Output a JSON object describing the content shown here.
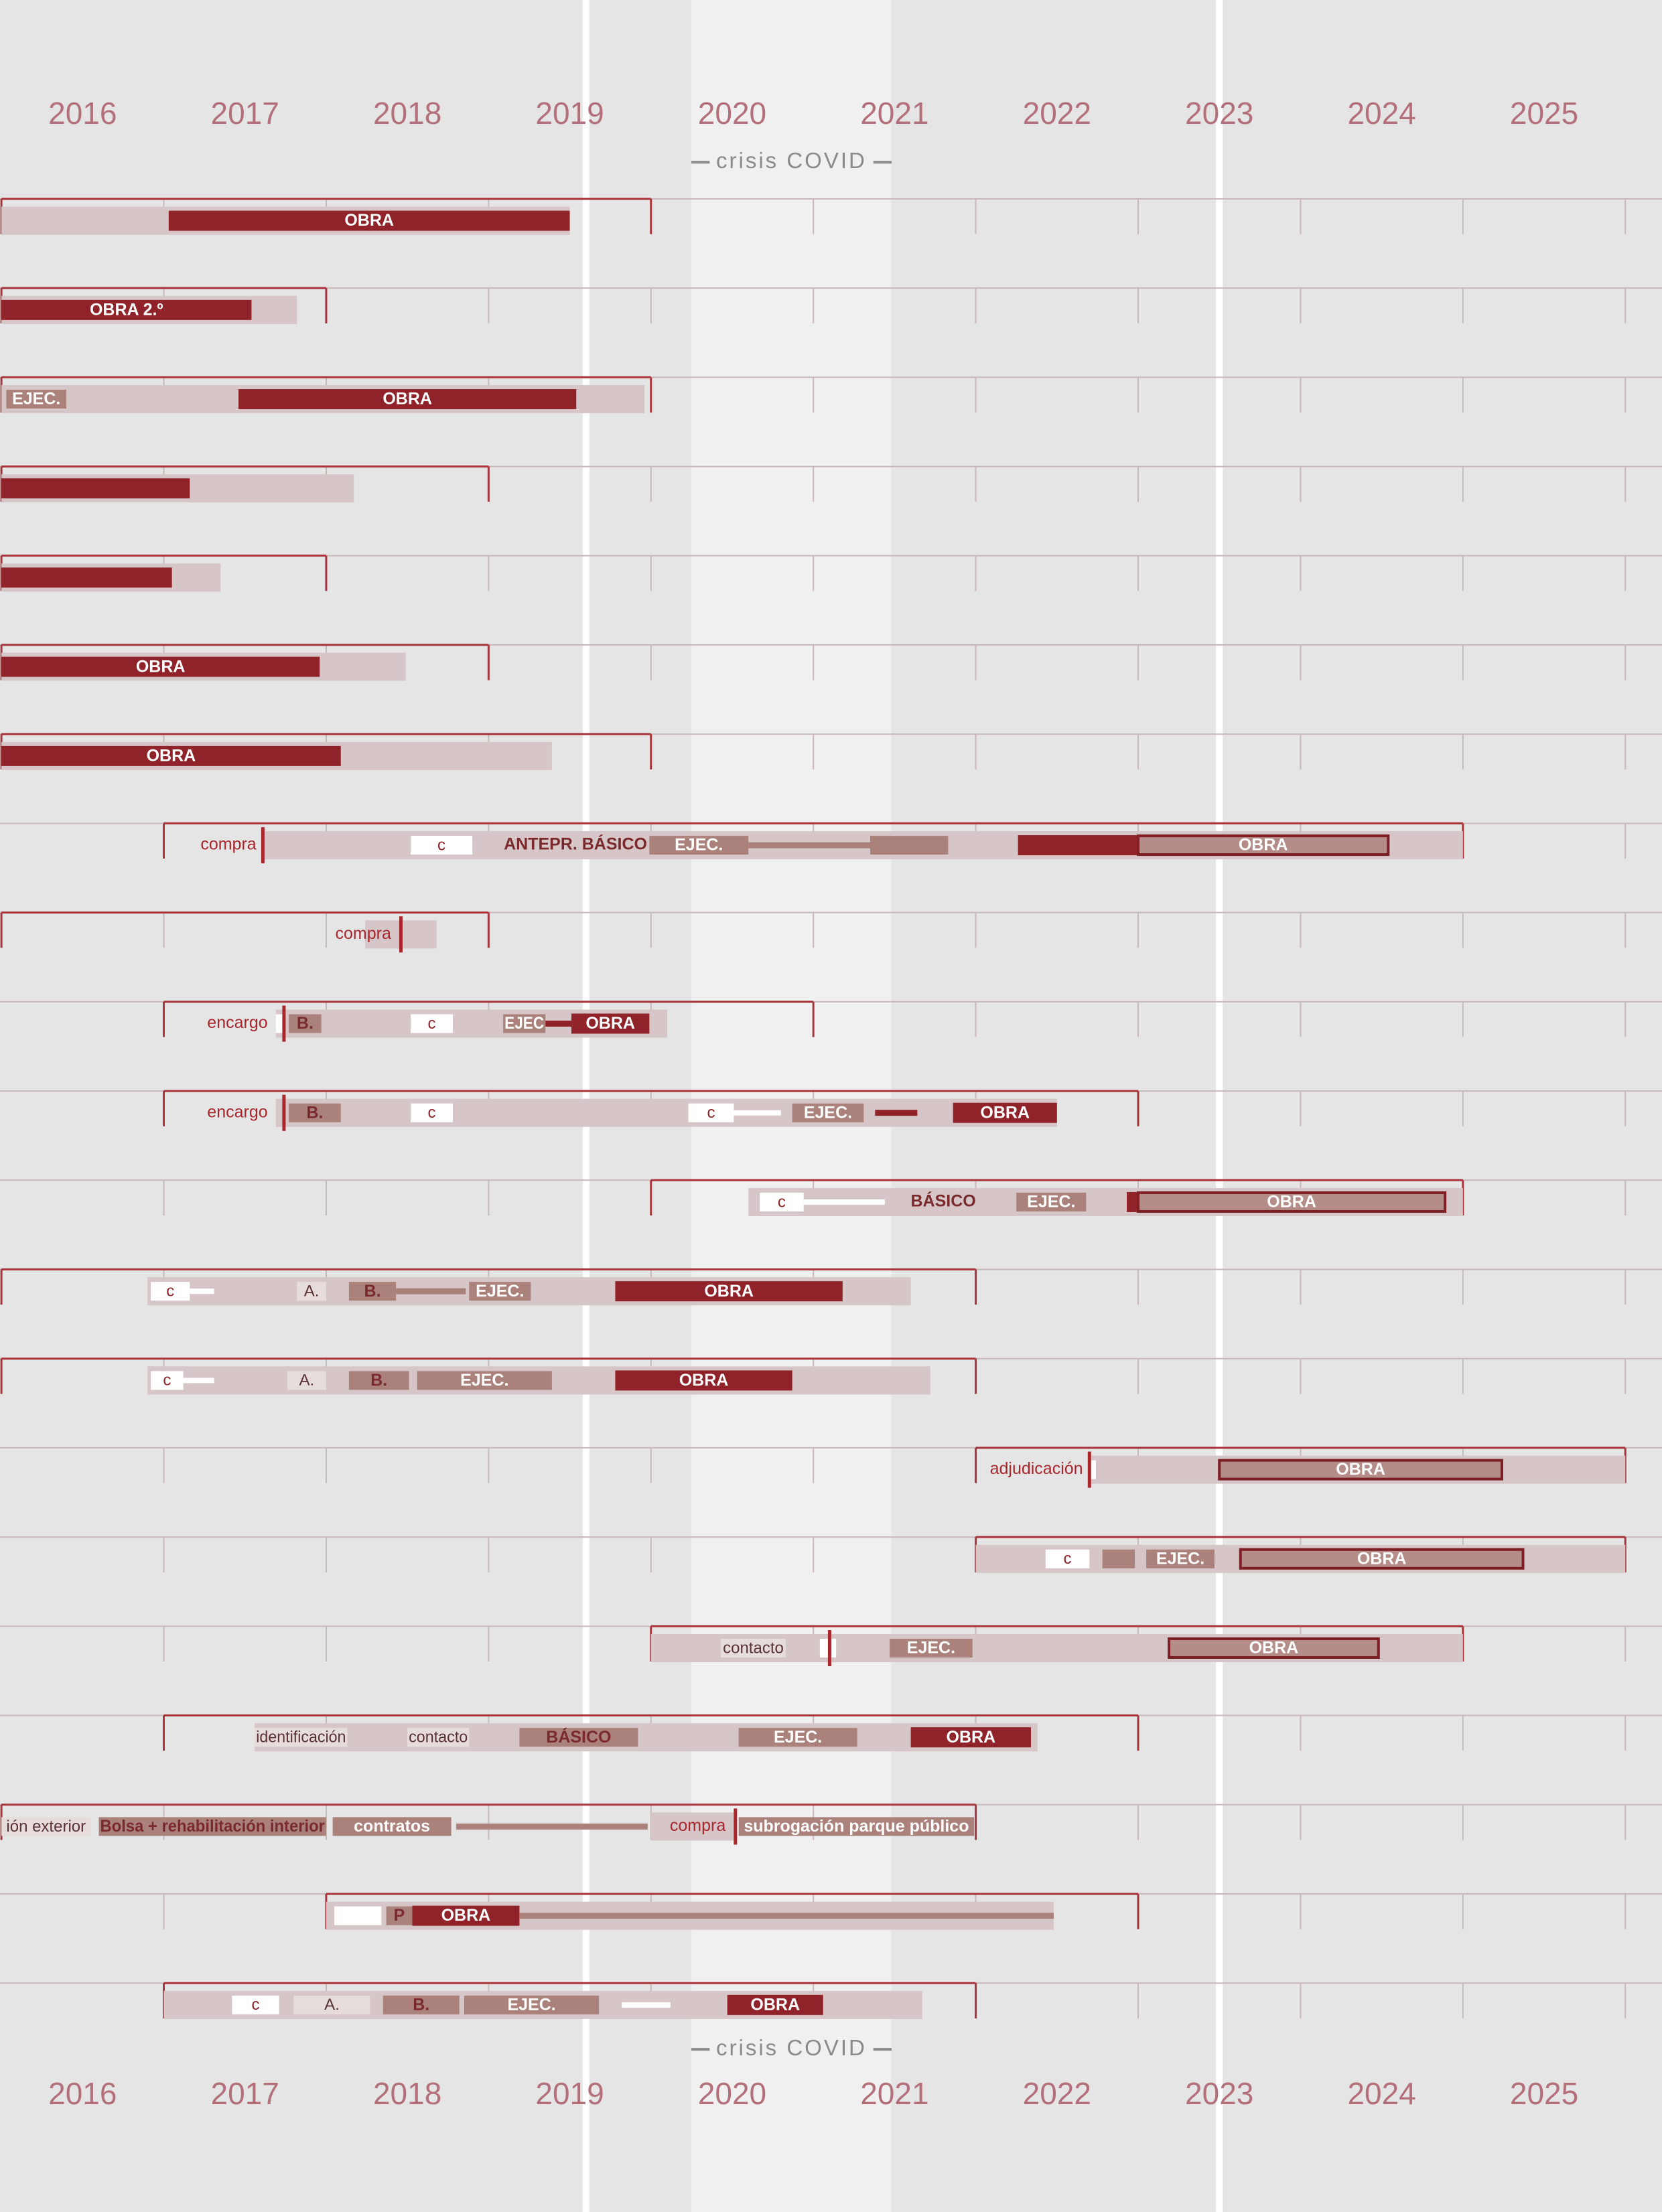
{
  "chart_data": {
    "type": "gantt",
    "xlim": [
      2016,
      2026
    ],
    "years": [
      "2016",
      "2017",
      "2018",
      "2019",
      "2020",
      "2021",
      "2022",
      "2023",
      "2024",
      "2025"
    ],
    "covid_label": "crisis COVID",
    "covid_band": [
      2020.25,
      2021.48
    ],
    "markers": [
      2019.6,
      2023.5
    ],
    "rows": [
      {
        "range": [
          2016,
          2020
        ],
        "bars": [
          {
            "kind": "bg",
            "start": 2016,
            "end": 2019.5
          },
          {
            "kind": "dark",
            "start": 2017.03,
            "end": 2019.5,
            "label": "OBRA"
          }
        ]
      },
      {
        "range": [
          2016,
          2018
        ],
        "bars": [
          {
            "kind": "bg",
            "start": 2016,
            "end": 2017.82
          },
          {
            "kind": "dark",
            "start": 2016,
            "end": 2017.54,
            "label": "OBRA 2.º"
          }
        ]
      },
      {
        "range": [
          2016,
          2020
        ],
        "bars": [
          {
            "kind": "bg",
            "start": 2016,
            "end": 2019.96
          },
          {
            "kind": "mid",
            "start": 2016.03,
            "end": 2016.4,
            "label": "EJEC."
          },
          {
            "kind": "dark",
            "start": 2017.46,
            "end": 2019.54,
            "label": "OBRA"
          }
        ]
      },
      {
        "range": [
          2016,
          2019
        ],
        "bars": [
          {
            "kind": "bg",
            "start": 2016,
            "end": 2018.17
          },
          {
            "kind": "dark",
            "start": 2016,
            "end": 2017.16
          }
        ]
      },
      {
        "range": [
          2016,
          2018
        ],
        "bars": [
          {
            "kind": "bg",
            "start": 2016,
            "end": 2017.35
          },
          {
            "kind": "dark",
            "start": 2016,
            "end": 2017.05
          }
        ]
      },
      {
        "range": [
          2016,
          2019
        ],
        "bars": [
          {
            "kind": "bg",
            "start": 2016,
            "end": 2018.49
          },
          {
            "kind": "dark",
            "start": 2016,
            "end": 2017.96,
            "label": "OBRA"
          }
        ]
      },
      {
        "range": [
          2016,
          2020
        ],
        "bars": [
          {
            "kind": "bg",
            "start": 2016,
            "end": 2019.39
          },
          {
            "kind": "dark",
            "start": 2016,
            "end": 2018.09,
            "label": "OBRA"
          }
        ]
      },
      {
        "range": [
          2017,
          2025
        ],
        "bars": [
          {
            "kind": "bg",
            "start": 2017.61,
            "end": 2025
          },
          {
            "kind": "note",
            "end": 2017.57,
            "label": "compra"
          },
          {
            "kind": "tick",
            "start": 2017.61
          },
          {
            "kind": "white",
            "start": 2018.52,
            "end": 2018.9,
            "label": "c"
          },
          {
            "kind": "strong",
            "start": 2019.1,
            "end": 2019.97,
            "label": "ANTEPR. BÁSICO"
          },
          {
            "kind": "mid",
            "start": 2019.99,
            "end": 2020.6,
            "label": "EJEC."
          },
          {
            "kind": "line",
            "start": 2020.6,
            "end": 2021.35
          },
          {
            "kind": "mid",
            "start": 2021.35,
            "end": 2021.83
          },
          {
            "kind": "dark",
            "start": 2022.26,
            "end": 2023.0
          },
          {
            "kind": "outline",
            "start": 2023.0,
            "end": 2024.54,
            "label": "OBRA"
          }
        ]
      },
      {
        "range": [
          2016,
          2019
        ],
        "bars": [
          {
            "kind": "bg",
            "start": 2018.24,
            "end": 2018.68
          },
          {
            "kind": "note",
            "end": 2018.4,
            "label": "compra"
          },
          {
            "kind": "tick",
            "start": 2018.46
          }
        ]
      },
      {
        "range": [
          2017,
          2021
        ],
        "bars": [
          {
            "kind": "bg",
            "start": 2017.69,
            "end": 2020.1
          },
          {
            "kind": "note",
            "end": 2017.64,
            "label": "encargo"
          },
          {
            "kind": "white",
            "start": 2017.69,
            "end": 2017.73
          },
          {
            "kind": "tick",
            "start": 2017.74
          },
          {
            "kind": "midd",
            "start": 2017.77,
            "end": 2017.97,
            "label": "B."
          },
          {
            "kind": "white",
            "start": 2018.52,
            "end": 2018.78,
            "label": "c"
          },
          {
            "kind": "mid",
            "start": 2019.09,
            "end": 2019.35,
            "label": "EJEC"
          },
          {
            "kind": "dline",
            "start": 2019.35,
            "end": 2019.51
          },
          {
            "kind": "dark",
            "start": 2019.51,
            "end": 2019.99,
            "label": "OBRA"
          }
        ]
      },
      {
        "range": [
          2017,
          2023
        ],
        "bars": [
          {
            "kind": "bg",
            "start": 2017.69,
            "end": 2022.5
          },
          {
            "kind": "note",
            "end": 2017.64,
            "label": "encargo"
          },
          {
            "kind": "tick",
            "start": 2017.74
          },
          {
            "kind": "midd",
            "start": 2017.77,
            "end": 2018.09,
            "label": "B."
          },
          {
            "kind": "white",
            "start": 2018.52,
            "end": 2018.78,
            "label": "c"
          },
          {
            "kind": "white",
            "start": 2020.23,
            "end": 2020.51,
            "label": "c"
          },
          {
            "kind": "wline",
            "start": 2020.51,
            "end": 2020.8
          },
          {
            "kind": "mid",
            "start": 2020.87,
            "end": 2021.31,
            "label": "EJEC."
          },
          {
            "kind": "dline",
            "start": 2021.38,
            "end": 2021.64
          },
          {
            "kind": "dark",
            "start": 2021.86,
            "end": 2022.5,
            "label": "OBRA"
          }
        ]
      },
      {
        "range": [
          2020,
          2025
        ],
        "bars": [
          {
            "kind": "bg",
            "start": 2020.6,
            "end": 2025
          },
          {
            "kind": "white",
            "start": 2020.67,
            "end": 2020.94,
            "label": "c"
          },
          {
            "kind": "wline",
            "start": 2020.94,
            "end": 2021.44
          },
          {
            "kind": "strong",
            "start": 2021.6,
            "end": 2022.0,
            "label": "BÁSICO"
          },
          {
            "kind": "mid",
            "start": 2022.25,
            "end": 2022.68,
            "label": "EJEC."
          },
          {
            "kind": "dark",
            "start": 2022.93,
            "end": 2023.0
          },
          {
            "kind": "outline",
            "start": 2023.0,
            "end": 2024.89,
            "label": "OBRA"
          }
        ]
      },
      {
        "range": [
          2016,
          2022
        ],
        "bars": [
          {
            "kind": "bg",
            "start": 2016.9,
            "end": 2021.6
          },
          {
            "kind": "white",
            "start": 2016.92,
            "end": 2017.16,
            "label": "c"
          },
          {
            "kind": "wline",
            "start": 2017.16,
            "end": 2017.31
          },
          {
            "kind": "light",
            "start": 2017.82,
            "end": 2018.0,
            "label": "A."
          },
          {
            "kind": "midd",
            "start": 2018.14,
            "end": 2018.43,
            "label": "B."
          },
          {
            "kind": "line",
            "start": 2018.43,
            "end": 2018.86
          },
          {
            "kind": "mid",
            "start": 2018.88,
            "end": 2019.26,
            "label": "EJEC."
          },
          {
            "kind": "dark",
            "start": 2019.78,
            "end": 2021.18,
            "label": "OBRA"
          }
        ]
      },
      {
        "range": [
          2016,
          2022
        ],
        "bars": [
          {
            "kind": "bg",
            "start": 2016.9,
            "end": 2021.72
          },
          {
            "kind": "white",
            "start": 2016.92,
            "end": 2017.12,
            "label": "c"
          },
          {
            "kind": "wline",
            "start": 2017.12,
            "end": 2017.31
          },
          {
            "kind": "light",
            "start": 2017.76,
            "end": 2018.0,
            "label": "A."
          },
          {
            "kind": "midd",
            "start": 2018.14,
            "end": 2018.51,
            "label": "B."
          },
          {
            "kind": "mid",
            "start": 2018.56,
            "end": 2019.39,
            "label": "EJEC."
          },
          {
            "kind": "dark",
            "start": 2019.78,
            "end": 2020.87,
            "label": "OBRA"
          }
        ]
      },
      {
        "range": [
          2022,
          2026
        ],
        "bars": [
          {
            "kind": "bg",
            "start": 2022.7,
            "end": 2026
          },
          {
            "kind": "note",
            "end": 2022.66,
            "label": "adjudicación"
          },
          {
            "kind": "white",
            "start": 2022.7,
            "end": 2022.74
          },
          {
            "kind": "tick",
            "start": 2022.7
          },
          {
            "kind": "outline",
            "start": 2023.5,
            "end": 2025.24,
            "label": "OBRA"
          }
        ]
      },
      {
        "range": [
          2022,
          2026
        ],
        "bars": [
          {
            "kind": "bg",
            "start": 2022,
            "end": 2026
          },
          {
            "kind": "white",
            "start": 2022.43,
            "end": 2022.7,
            "label": "c"
          },
          {
            "kind": "mid",
            "start": 2022.78,
            "end": 2022.98
          },
          {
            "kind": "mid",
            "start": 2023.05,
            "end": 2023.47,
            "label": "EJEC."
          },
          {
            "kind": "outline",
            "start": 2023.63,
            "end": 2025.37,
            "label": "OBRA"
          }
        ]
      },
      {
        "range": [
          2020,
          2025
        ],
        "bars": [
          {
            "kind": "bg",
            "start": 2020,
            "end": 2025
          },
          {
            "kind": "light",
            "start": 2020.43,
            "end": 2020.83,
            "label": "contacto"
          },
          {
            "kind": "white",
            "start": 2021.04,
            "end": 2021.14
          },
          {
            "kind": "tick",
            "start": 2021.1
          },
          {
            "kind": "mid",
            "start": 2021.47,
            "end": 2021.98,
            "label": "EJEC."
          },
          {
            "kind": "outline",
            "start": 2023.19,
            "end": 2024.48,
            "label": "OBRA"
          }
        ]
      },
      {
        "range": [
          2017,
          2023
        ],
        "bars": [
          {
            "kind": "bg",
            "start": 2017.56,
            "end": 2022.38
          },
          {
            "kind": "light",
            "start": 2017.56,
            "end": 2018.13,
            "label": "identificación"
          },
          {
            "kind": "light",
            "start": 2018.5,
            "end": 2018.88,
            "label": "contacto"
          },
          {
            "kind": "midd",
            "start": 2019.19,
            "end": 2019.92,
            "label": "BÁSICO"
          },
          {
            "kind": "mid",
            "start": 2020.54,
            "end": 2021.27,
            "label": "EJEC."
          },
          {
            "kind": "dark",
            "start": 2021.6,
            "end": 2022.34,
            "label": "OBRA"
          }
        ]
      },
      {
        "range": [
          2016,
          2022
        ],
        "bars": [
          {
            "kind": "light",
            "start": 2016,
            "end": 2016.55,
            "label": "ión exterior"
          },
          {
            "kind": "midd",
            "start": 2016.6,
            "end": 2018.0,
            "label": "Bolsa + rehabilitación interior"
          },
          {
            "kind": "mid",
            "start": 2018.04,
            "end": 2018.77,
            "label": "contratos"
          },
          {
            "kind": "line",
            "start": 2018.8,
            "end": 2019.98
          },
          {
            "kind": "bg",
            "start": 2020,
            "end": 2020.52
          },
          {
            "kind": "note",
            "end": 2020.46,
            "label": "compra"
          },
          {
            "kind": "tick",
            "start": 2020.52
          },
          {
            "kind": "mid",
            "start": 2020.54,
            "end": 2021.99,
            "label": "subrogación parque público"
          }
        ]
      },
      {
        "range": [
          2018,
          2023
        ],
        "bars": [
          {
            "kind": "bg",
            "start": 2018,
            "end": 2022.48
          },
          {
            "kind": "white",
            "start": 2018.05,
            "end": 2018.34
          },
          {
            "kind": "midd",
            "start": 2018.37,
            "end": 2018.53,
            "label": "P"
          },
          {
            "kind": "dark",
            "start": 2018.53,
            "end": 2019.19,
            "label": "OBRA"
          },
          {
            "kind": "line",
            "start": 2019.19,
            "end": 2022.48
          }
        ]
      },
      {
        "range": [
          2017,
          2022
        ],
        "bars": [
          {
            "kind": "bg",
            "start": 2017,
            "end": 2021.67
          },
          {
            "kind": "white",
            "start": 2017.42,
            "end": 2017.71,
            "label": "c"
          },
          {
            "kind": "light",
            "start": 2017.8,
            "end": 2018.27,
            "label": "A."
          },
          {
            "kind": "midd",
            "start": 2018.35,
            "end": 2018.82,
            "label": "B."
          },
          {
            "kind": "mid",
            "start": 2018.85,
            "end": 2019.68,
            "label": "EJEC."
          },
          {
            "kind": "wline",
            "start": 2019.82,
            "end": 2020.12
          },
          {
            "kind": "dark",
            "start": 2020.47,
            "end": 2021.06,
            "label": "OBRA"
          }
        ]
      }
    ]
  }
}
